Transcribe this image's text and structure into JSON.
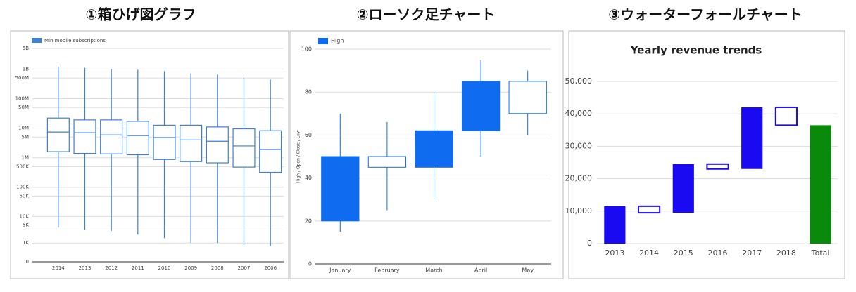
{
  "chart_data": [
    {
      "type": "boxplot",
      "heading": "①箱ひげ図グラフ",
      "categories": [
        "2014",
        "2013",
        "2012",
        "2011",
        "2010",
        "2009",
        "2008",
        "2007",
        "2006"
      ],
      "series": [
        {
          "name": "Min mobile subscriptions",
          "color": "#3d7fd9",
          "min": [
            4000,
            3300,
            3000,
            2200,
            1600,
            1000,
            1000,
            800,
            720
          ],
          "q1": [
            1600000,
            1400000,
            1350000,
            1260000,
            870000,
            740000,
            670000,
            480000,
            320000
          ],
          "median": [
            7400000,
            7000000,
            5900000,
            5600000,
            4800000,
            4000000,
            3600000,
            2500000,
            1900000
          ],
          "q3": [
            22000000,
            19000000,
            19000000,
            17000000,
            12600000,
            12600000,
            11000000,
            9500000,
            8200000
          ],
          "max": [
            1200000000,
            1100000000,
            1000000000,
            950000000,
            850000000,
            720000000,
            650000000,
            520000000,
            440000000
          ]
        }
      ],
      "scale": "symlog",
      "ylim": [
        0,
        5000000000
      ],
      "yticks": [
        0,
        {
          "value": 1000,
          "label": "1K"
        },
        {
          "value": 5000,
          "label": "5K"
        },
        {
          "value": 10000,
          "label": "10K"
        },
        {
          "value": 50000,
          "label": "50K"
        },
        {
          "value": 100000,
          "label": "100K"
        },
        {
          "value": 500000,
          "label": "500K"
        },
        {
          "value": 1000000,
          "label": "1M"
        },
        {
          "value": 5000000,
          "label": "5M"
        },
        {
          "value": 10000000,
          "label": "10M"
        },
        {
          "value": 50000000,
          "label": "50M"
        },
        {
          "value": 100000000,
          "label": "100M"
        },
        {
          "value": 500000000,
          "label": "500M"
        },
        {
          "value": 1000000000,
          "label": "1B"
        },
        {
          "value": 5000000000,
          "label": "5B"
        }
      ],
      "grid": true,
      "legend": "top-left"
    },
    {
      "type": "candlestick",
      "heading": "②ローソク足チャート",
      "categories": [
        "January",
        "February",
        "March",
        "April",
        "May"
      ],
      "series": [
        {
          "name": "High",
          "color": "#0f6cf0",
          "low": [
            15,
            25,
            30,
            50,
            60
          ],
          "open": [
            50,
            45,
            62,
            85,
            70
          ],
          "close": [
            20,
            50,
            45,
            62,
            85
          ],
          "high": [
            70,
            66,
            80,
            95,
            90
          ]
        }
      ],
      "y_label": "High / Open / Close / Low",
      "ylim": [
        0,
        100
      ],
      "yticks": [
        0,
        20,
        40,
        60,
        80,
        100
      ],
      "grid": true,
      "legend": "top-left"
    },
    {
      "type": "waterfall",
      "heading": "③ウォーターフォールチャート",
      "title": "Yearly revenue trends",
      "categories": [
        "2013",
        "2014",
        "2015",
        "2016",
        "2017",
        "2018",
        "Total"
      ],
      "values": [
        11500,
        -2000,
        15000,
        -1500,
        19000,
        -5500,
        36500
      ],
      "totals": [
        false,
        false,
        false,
        false,
        false,
        false,
        true
      ],
      "increase_color": "#1a0af2",
      "decrease_color": "#1a0af2",
      "total_color": "#0a8a0a",
      "ylim": [
        0,
        50000
      ],
      "yticks": [
        0,
        {
          "value": 10000,
          "label": "10,000"
        },
        {
          "value": 20000,
          "label": "20,000"
        },
        {
          "value": 30000,
          "label": "30,000"
        },
        {
          "value": 40000,
          "label": "40,000"
        },
        {
          "value": 50000,
          "label": "50,000"
        }
      ],
      "grid": true
    }
  ]
}
